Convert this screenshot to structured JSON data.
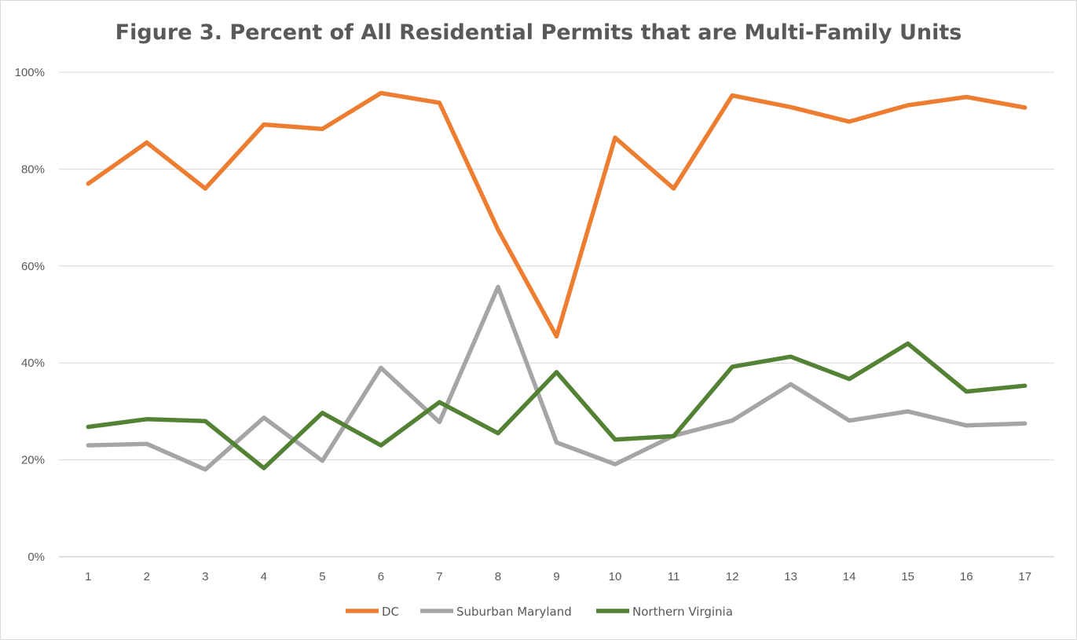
{
  "chart_data": {
    "type": "line",
    "title": "Figure 3. Percent of All Residential Permits that are Multi-Family Units",
    "xlabel": "",
    "ylabel": "",
    "categories": [
      "1",
      "2",
      "3",
      "4",
      "5",
      "6",
      "7",
      "8",
      "9",
      "10",
      "11",
      "12",
      "13",
      "14",
      "15",
      "16",
      "17"
    ],
    "y_ticks": [
      "0%",
      "20%",
      "40%",
      "60%",
      "80%",
      "100%"
    ],
    "ylim": [
      0,
      100
    ],
    "grid": true,
    "legend_position": "bottom",
    "series": [
      {
        "name": "DC",
        "color": "#ed7d31",
        "values": [
          77,
          85.5,
          76,
          89.2,
          88.3,
          95.7,
          93.7,
          67.5,
          45.5,
          86.5,
          76,
          95.2,
          92.8,
          89.8,
          93.2,
          94.9,
          92.7
        ]
      },
      {
        "name": "Suburban Maryland",
        "color": "#a5a5a5",
        "values": [
          23,
          23.3,
          18,
          28.7,
          19.8,
          39,
          27.8,
          55.7,
          23.6,
          19.1,
          25,
          28.1,
          35.6,
          28.1,
          30,
          27.1,
          27.5
        ]
      },
      {
        "name": "Northern Virginia",
        "color": "#548235",
        "values": [
          26.8,
          28.4,
          28,
          18.3,
          29.7,
          23,
          31.9,
          25.5,
          38.1,
          24.2,
          24.9,
          39.2,
          41.3,
          36.7,
          44,
          34.1,
          35.3
        ]
      }
    ]
  }
}
